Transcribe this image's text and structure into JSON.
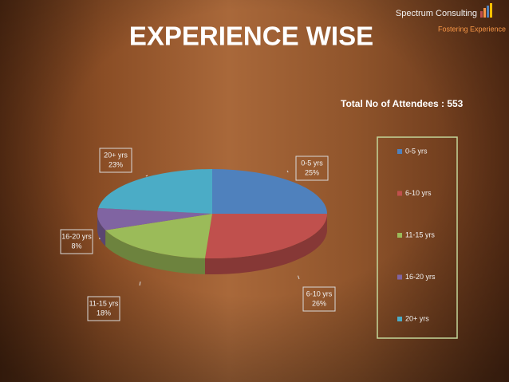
{
  "branding": {
    "company": "Spectrum Consulting",
    "tagline": "Fostering Experience"
  },
  "chart_data": {
    "type": "pie",
    "title": "EXPERIENCE WISE",
    "subtitle": "Total No of Attendees : 553",
    "categories": [
      "0-5 yrs",
      "6-10 yrs",
      "11-15 yrs",
      "16-20 yrs",
      "20+ yrs"
    ],
    "values": [
      25,
      26,
      18,
      8,
      23
    ],
    "value_labels": [
      "25%",
      "26%",
      "18%",
      "8%",
      "23%"
    ],
    "colors": [
      "#4f81bd",
      "#c0504d",
      "#9bbb59",
      "#8064a2",
      "#4bacc6"
    ],
    "legend": "right"
  }
}
